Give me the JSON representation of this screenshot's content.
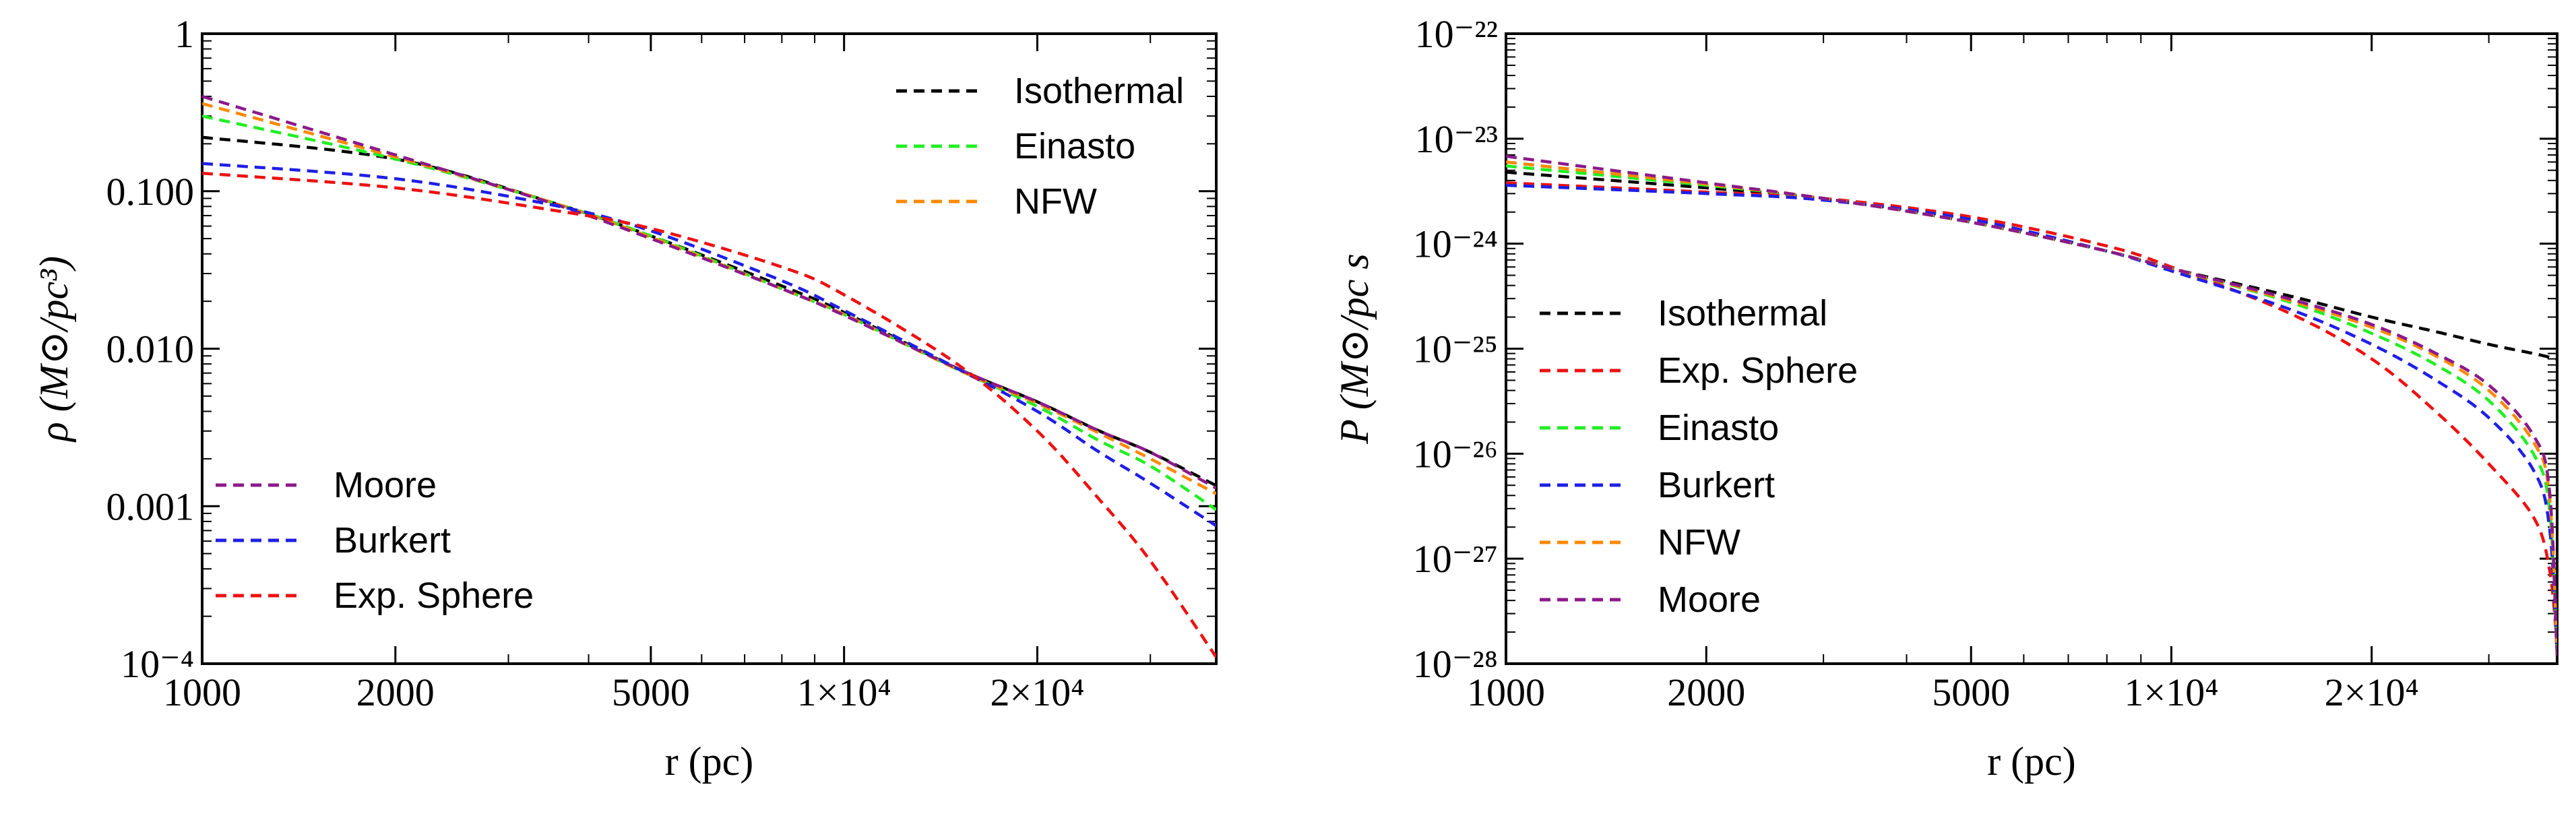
{
  "chart_data": [
    {
      "type": "line",
      "scale": "log-log",
      "title": "",
      "xlabel": "r (pc)",
      "ylabel": "ρ (M⊙/pc³)",
      "xlim": [
        1000,
        38000
      ],
      "ylim": [
        0.0001,
        1
      ],
      "x_ticks": [
        {
          "value": 1000,
          "label": "1000"
        },
        {
          "value": 2000,
          "label": "2000"
        },
        {
          "value": 5000,
          "label": "5000"
        },
        {
          "value": 10000,
          "label": "1×10⁴"
        },
        {
          "value": 20000,
          "label": "2×10⁴"
        }
      ],
      "y_ticks": [
        {
          "value": 1,
          "label": "1"
        },
        {
          "value": 0.1,
          "label": "0.100"
        },
        {
          "value": 0.01,
          "label": "0.010"
        },
        {
          "value": 0.001,
          "label": "0.001"
        },
        {
          "value": 0.0001,
          "label": "10⁻⁴"
        }
      ],
      "x": [
        1000,
        2000,
        3500,
        5000,
        8000,
        10000,
        15000,
        20000,
        25000,
        30000,
        38000
      ],
      "series": [
        {
          "name": "Isothermal",
          "color": "#000000",
          "values": [
            0.22,
            0.16,
            0.085,
            0.052,
            0.025,
            0.017,
            0.0075,
            0.0046,
            0.003,
            0.0022,
            0.00135
          ]
        },
        {
          "name": "Einasto",
          "color": "#22ee22",
          "values": [
            0.3,
            0.16,
            0.085,
            0.052,
            0.024,
            0.0165,
            0.0074,
            0.0043,
            0.0026,
            0.0018,
            0.00095
          ]
        },
        {
          "name": "NFW",
          "color": "#ff8800",
          "values": [
            0.36,
            0.165,
            0.085,
            0.051,
            0.024,
            0.0165,
            0.0074,
            0.0045,
            0.0029,
            0.002,
            0.0012
          ]
        },
        {
          "name": "Moore",
          "color": "#8b1a8b",
          "values": [
            0.4,
            0.17,
            0.084,
            0.05,
            0.024,
            0.0163,
            0.0075,
            0.0046,
            0.003,
            0.0022,
            0.0013
          ]
        },
        {
          "name": "Burkert",
          "color": "#1f1fe6",
          "values": [
            0.15,
            0.12,
            0.082,
            0.056,
            0.027,
            0.0175,
            0.0075,
            0.004,
            0.0022,
            0.0014,
            0.00075
          ]
        },
        {
          "name": "Exp. Sphere",
          "color": "#ee1111",
          "values": [
            0.13,
            0.105,
            0.076,
            0.058,
            0.033,
            0.022,
            0.008,
            0.003,
            0.0011,
            0.00045,
            0.00011
          ]
        }
      ],
      "legend": [
        {
          "name": "Isothermal",
          "position": "top-right"
        },
        {
          "name": "Einasto",
          "position": "top-right"
        },
        {
          "name": "NFW",
          "position": "top-right"
        },
        {
          "name": "Moore",
          "position": "bottom-left"
        },
        {
          "name": "Burkert",
          "position": "bottom-left"
        },
        {
          "name": "Exp. Sphere",
          "position": "bottom-left"
        }
      ]
    },
    {
      "type": "line",
      "scale": "log-log",
      "title": "",
      "xlabel": "r (pc)",
      "ylabel": "P (M⊙/pc s",
      "xlim": [
        1000,
        38000
      ],
      "ylim": [
        1e-28,
        1e-22
      ],
      "x_ticks": [
        {
          "value": 1000,
          "label": "1000"
        },
        {
          "value": 2000,
          "label": "2000"
        },
        {
          "value": 5000,
          "label": "5000"
        },
        {
          "value": 10000,
          "label": "1×10⁴"
        },
        {
          "value": 20000,
          "label": "2×10⁴"
        }
      ],
      "y_ticks": [
        {
          "value": 1e-22,
          "label": "10⁻²²"
        },
        {
          "value": 1e-23,
          "label": "10⁻²³"
        },
        {
          "value": 1e-24,
          "label": "10⁻²⁴"
        },
        {
          "value": 1e-25,
          "label": "10⁻²⁵"
        },
        {
          "value": 1e-26,
          "label": "10⁻²⁶"
        },
        {
          "value": 1e-27,
          "label": "10⁻²⁷"
        },
        {
          "value": 1e-28,
          "label": "10⁻²⁸"
        }
      ],
      "x": [
        1000,
        2000,
        3000,
        5000,
        8000,
        10000,
        15000,
        20000,
        25000,
        30000,
        35000,
        37000,
        38000
      ],
      "series": [
        {
          "name": "Isothermal",
          "color": "#000000",
          "values": [
            4.8e-24,
            3.4e-24,
            2.7e-24,
            1.6e-24,
            8.5e-25,
            5.8e-25,
            3.2e-25,
            2e-25,
            1.45e-25,
            1.1e-25,
            9e-26,
            8.3e-26,
            8e-26
          ]
        },
        {
          "name": "Exp. Sphere",
          "color": "#ee1111",
          "values": [
            3.8e-24,
            3.1e-24,
            2.7e-24,
            1.8e-24,
            9.5e-25,
            6e-25,
            2.2e-25,
            8e-26,
            2.5e-26,
            8e-27,
            2.5e-27,
            8e-28,
            1.5e-28
          ]
        },
        {
          "name": "Einasto",
          "color": "#22ee22",
          "values": [
            5.5e-24,
            3.6e-24,
            2.7e-24,
            1.6e-24,
            8.5e-25,
            5.8e-25,
            2.8e-25,
            1.4e-25,
            7e-26,
            3.2e-26,
            1e-26,
            3e-27,
            1.2e-28
          ]
        },
        {
          "name": "Burkert",
          "color": "#1f1fe6",
          "values": [
            3.6e-24,
            3e-24,
            2.6e-24,
            1.7e-24,
            8.5e-25,
            5.5e-25,
            2.4e-25,
            1.1e-25,
            5e-26,
            2.2e-26,
            7e-27,
            2e-27,
            1.2e-28
          ]
        },
        {
          "name": "NFW",
          "color": "#ff8800",
          "values": [
            6e-24,
            3.7e-24,
            2.7e-24,
            1.6e-24,
            8.5e-25,
            5.8e-25,
            2.9e-25,
            1.6e-25,
            8.5e-26,
            4e-26,
            1.3e-26,
            4e-27,
            1.2e-28
          ]
        },
        {
          "name": "Moore",
          "color": "#8b1a8b",
          "values": [
            6.8e-24,
            3.8e-24,
            2.7e-24,
            1.6e-24,
            8.5e-25,
            5.8e-25,
            3e-25,
            1.7e-25,
            9e-26,
            4.5e-26,
            1.5e-26,
            4.5e-27,
            1.2e-28
          ]
        }
      ],
      "legend": [
        {
          "name": "Isothermal",
          "position": "middle-left"
        },
        {
          "name": "Exp. Sphere",
          "position": "middle-left"
        },
        {
          "name": "Einasto",
          "position": "middle-left"
        },
        {
          "name": "Burkert",
          "position": "middle-left"
        },
        {
          "name": "NFW",
          "position": "middle-left"
        },
        {
          "name": "Moore",
          "position": "middle-left"
        }
      ]
    }
  ]
}
